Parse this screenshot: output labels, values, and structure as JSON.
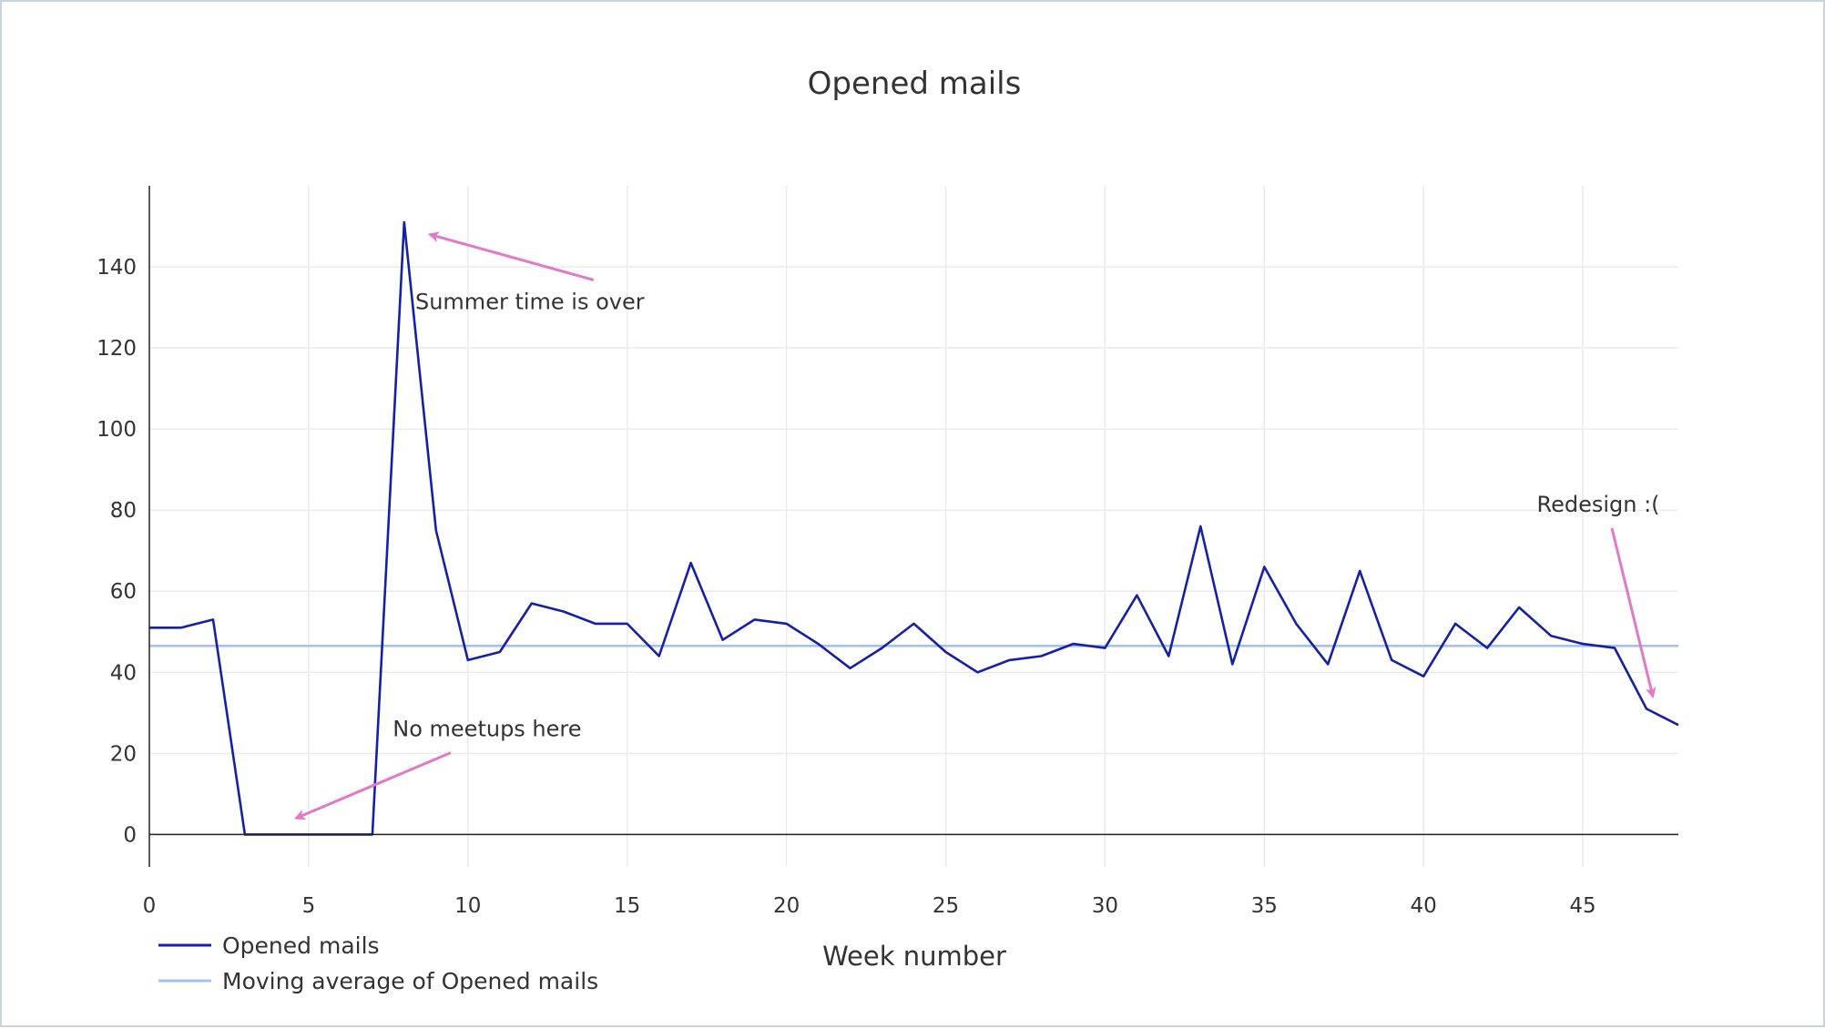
{
  "chart_data": {
    "type": "line",
    "title": "Opened mails",
    "xlabel": "Week number",
    "ylabel": "",
    "xlim": [
      0,
      48
    ],
    "ylim": [
      -8,
      160
    ],
    "x_ticks": [
      0,
      5,
      10,
      15,
      20,
      25,
      30,
      35,
      40,
      45
    ],
    "y_ticks": [
      0,
      20,
      40,
      60,
      80,
      100,
      120,
      140
    ],
    "grid": true,
    "legend_position": "bottom-left",
    "series": [
      {
        "name": "Opened mails",
        "color": "#1520a6",
        "x": [
          0,
          1,
          2,
          3,
          4,
          5,
          6,
          7,
          8,
          9,
          10,
          11,
          12,
          13,
          14,
          15,
          16,
          17,
          18,
          19,
          20,
          21,
          22,
          23,
          24,
          25,
          26,
          27,
          28,
          29,
          30,
          31,
          32,
          33,
          34,
          35,
          36,
          37,
          38,
          39,
          40,
          41,
          42,
          43,
          44,
          45,
          46,
          47,
          48
        ],
        "values": [
          51,
          51,
          53,
          0,
          0,
          0,
          0,
          0,
          151,
          75,
          43,
          45,
          57,
          55,
          52,
          52,
          44,
          67,
          48,
          53,
          52,
          47,
          41,
          46,
          52,
          45,
          40,
          43,
          44,
          47,
          46,
          59,
          44,
          76,
          42,
          66,
          52,
          42,
          65,
          43,
          39,
          52,
          46,
          56,
          49,
          47,
          46,
          31,
          27
        ]
      },
      {
        "name": "Moving average of Opened mails",
        "color": "#a6c0f2",
        "x": [
          0,
          48
        ],
        "values": [
          46.5,
          46.5
        ]
      }
    ],
    "annotations": [
      {
        "text": "Summer time is over",
        "x": 8.8,
        "y": 148,
        "color": "#e07ac8"
      },
      {
        "text": "No meetups here",
        "x": 4.6,
        "y": 4,
        "color": "#e07ac8"
      },
      {
        "text": "Redesign :(",
        "x": 47.2,
        "y": 34,
        "color": "#e07ac8"
      }
    ]
  }
}
